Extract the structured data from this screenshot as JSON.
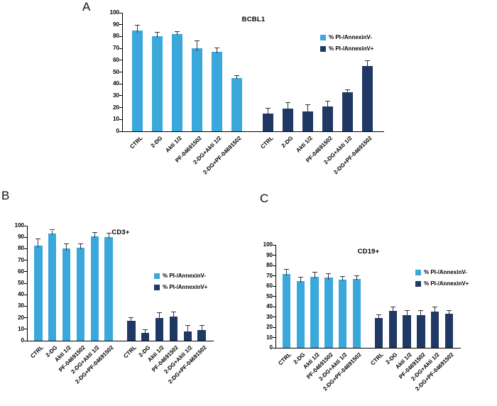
{
  "figure": {
    "panels": [
      {
        "letter": "A",
        "title": "BCBL1"
      },
      {
        "letter": "B",
        "title": "CD3+"
      },
      {
        "letter": "C",
        "title": "CD19+"
      }
    ]
  },
  "colors": {
    "series1": "#3BA8DC",
    "series2": "#1F3864",
    "error_bar": "#333333",
    "axis": "#000000"
  },
  "chart_data": [
    {
      "type": "bar",
      "title": "BCBL1",
      "panel": "A",
      "categories": [
        "CTRL",
        "2-DG",
        "Akti 1/2",
        "PF-04691502",
        "2-DG+Akti 1/2",
        "2-DG+PF-04691502"
      ],
      "series": [
        {
          "name": "% PI-/AnnexinV-",
          "values": [
            85,
            80,
            82,
            70,
            67,
            45
          ],
          "errors": [
            4,
            3,
            2,
            6,
            3,
            2
          ]
        },
        {
          "name": "% PI-/AnnexinV+",
          "values": [
            15,
            19,
            17,
            21,
            33,
            55
          ],
          "errors": [
            4,
            5,
            5,
            4,
            2,
            4
          ]
        }
      ],
      "xlabel": "",
      "ylabel": "",
      "ylim": [
        0,
        100
      ],
      "ytick_step": 10,
      "grid": false,
      "legend_position": "right-inside"
    },
    {
      "type": "bar",
      "title": "CD3+",
      "panel": "B",
      "categories": [
        "CTRL",
        "2-DG",
        "Akti 1/2",
        "PF-04691502",
        "2-DG+Akti 1/2",
        "2-DG+PF-04691502"
      ],
      "series": [
        {
          "name": "% PI-/AnnexinV-",
          "values": [
            83,
            93,
            80,
            81,
            91,
            90
          ],
          "errors": [
            5,
            3,
            4,
            3,
            3,
            3
          ]
        },
        {
          "name": "% PI-/AnnexinV+",
          "values": [
            17,
            7,
            20,
            21,
            8,
            9
          ],
          "errors": [
            3,
            2,
            4,
            4,
            5,
            4
          ]
        }
      ],
      "xlabel": "",
      "ylabel": "",
      "ylim": [
        0,
        100
      ],
      "ytick_step": 10,
      "grid": false,
      "legend_position": "right-inside"
    },
    {
      "type": "bar",
      "title": "CD19+",
      "panel": "C",
      "categories": [
        "CTRL",
        "2-DG",
        "Akti 1/2",
        "PF-04691502",
        "2-DG+Akti 1/2",
        "2-DG+PF-04691502"
      ],
      "series": [
        {
          "name": "% PI-/AnnexinV-",
          "values": [
            72,
            65,
            69,
            68,
            66,
            67
          ],
          "errors": [
            4,
            3,
            4,
            4,
            3,
            3
          ]
        },
        {
          "name": "% PI-/AnnexinV+",
          "values": [
            29,
            36,
            32,
            32,
            35,
            33
          ],
          "errors": [
            3,
            3,
            4,
            4,
            4,
            3
          ]
        }
      ],
      "xlabel": "",
      "ylabel": "",
      "ylim": [
        0,
        100
      ],
      "ytick_step": 10,
      "grid": false,
      "legend_position": "right-inside"
    }
  ]
}
